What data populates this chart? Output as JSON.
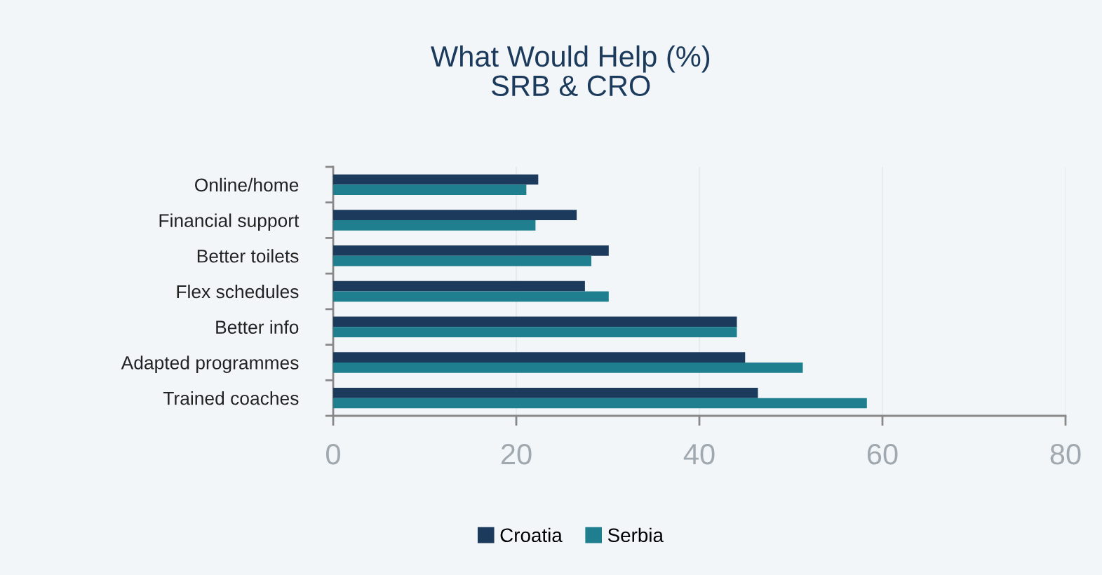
{
  "chart_data": {
    "type": "bar",
    "orientation": "horizontal",
    "title": "What Would Help (%)\nSRB & CRO",
    "categories": [
      "Online/home",
      "Financial support",
      "Better toilets",
      "Flex schedules",
      "Better info",
      "Adapted programmes",
      "Trained coaches"
    ],
    "series": [
      {
        "name": "Croatia",
        "color": "#1b3a5c",
        "values": [
          22.4,
          26.6,
          30.1,
          27.5,
          44.1,
          45.0,
          46.4
        ]
      },
      {
        "name": "Serbia",
        "color": "#1f7f8f",
        "values": [
          21.1,
          22.1,
          28.2,
          30.1,
          44.1,
          51.3,
          58.3
        ]
      }
    ],
    "xlim": [
      0,
      80
    ],
    "xticks": [
      0,
      20,
      40,
      60,
      80
    ],
    "grid": "x",
    "legend": "bottom"
  }
}
